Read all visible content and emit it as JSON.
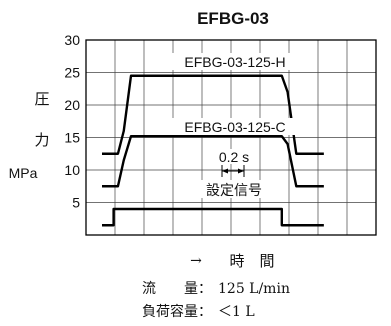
{
  "chart_data": {
    "type": "line",
    "title": "EFBG-03",
    "ylabel_chars": [
      "圧",
      "力"
    ],
    "yunit": "MPa",
    "ylim": [
      0,
      30
    ],
    "yticks": [
      5,
      10,
      15,
      20,
      25,
      30
    ],
    "y_grid_lines": [
      5,
      10,
      15,
      20,
      25,
      30
    ],
    "x_grid_count": 10,
    "xlabel": "時　間",
    "grid": true,
    "series": [
      {
        "name": "EFBG-03-125-H",
        "x": [
          0,
          0.55,
          0.75,
          1.0,
          6.2,
          6.4,
          6.7,
          7.65
        ],
        "values": [
          12.5,
          12.5,
          16,
          24.5,
          24.5,
          22,
          12.5,
          12.5
        ]
      },
      {
        "name": "EFBG-03-125-C",
        "x": [
          0,
          0.55,
          0.75,
          1.0,
          6.2,
          6.4,
          6.7,
          7.65
        ],
        "values": [
          7.5,
          7.5,
          11.5,
          15.2,
          15.2,
          14,
          7.5,
          7.5
        ]
      },
      {
        "name": "設定信号",
        "x": [
          0,
          0.4,
          0.4,
          6.2,
          6.2,
          7.65
        ],
        "values": [
          1.5,
          1.5,
          4,
          4,
          1.5,
          1.5
        ]
      }
    ],
    "annotations": {
      "time_scale": "0.2 s",
      "signal_label": "設定信号",
      "xaxis_arrow": "→"
    },
    "notes": {
      "flow_label": "流　　量：",
      "flow_value": "125 L/min",
      "capacity_label": "負荷容量：",
      "capacity_value": "＜1 L"
    }
  }
}
